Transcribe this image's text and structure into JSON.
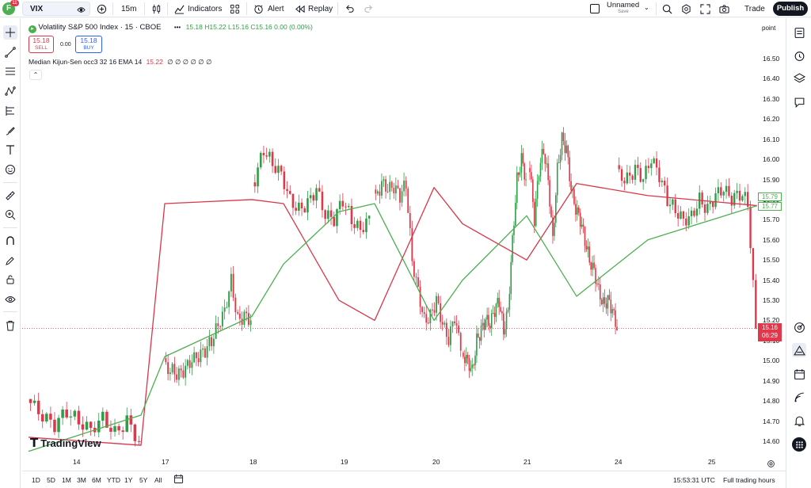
{
  "topbar": {
    "avatar_letter": "F",
    "avatar_badge": "11",
    "symbol": "VIX",
    "interval": "15m",
    "indicators_label": "Indicators",
    "alert_label": "Alert",
    "replay_label": "Replay",
    "layout_name": "Unnamed",
    "layout_sub": "Save",
    "trade_label": "Trade",
    "publish_label": "Publish"
  },
  "legend": {
    "title": "Volatility S&P 500 Index · 15 · CBOE",
    "ohlc": "15.18 H15.22 L15.16 C15.16 0.00 (0.00%)",
    "sell_price": "15.18",
    "sell_label": "SELL",
    "spread": "0.00",
    "buy_price": "15.18",
    "buy_label": "BUY",
    "indicator_name": "Median Kijun-Sen",
    "indicator_params": "occ3 32 16 EMA 14",
    "indicator_value": "15.22",
    "indicator_extra": "∅ ∅ ∅ ∅ ∅ ∅",
    "more_dots": "•••"
  },
  "price_axis": {
    "unit_label": "point",
    "ticks": [
      "16.50",
      "16.40",
      "16.30",
      "16.20",
      "16.10",
      "16.00",
      "15.90",
      "15.80",
      "15.70",
      "15.60",
      "15.50",
      "15.40",
      "15.30",
      "15.20",
      "15.10",
      "15.00",
      "14.90",
      "14.80",
      "14.70",
      "14.60"
    ],
    "label_green_1": "15.79",
    "label_green_2": "15.77",
    "label_last_price": "15.16",
    "label_countdown": "06:29"
  },
  "time_axis": {
    "ticks": [
      "14",
      "17",
      "18",
      "19",
      "20",
      "21",
      "24",
      "25"
    ]
  },
  "bottom": {
    "ranges": [
      "1D",
      "5D",
      "1M",
      "3M",
      "6M",
      "YTD",
      "1Y",
      "5Y",
      "All"
    ],
    "clock": "15:53:31 UTC",
    "session": "Full trading hours"
  },
  "watermark": "TradingView",
  "colors": {
    "up": "#26a69a",
    "up_green": "#2e9e48",
    "down": "#e0374a",
    "median_line": "#d9364a",
    "kijun_line": "#4caf50",
    "accent": "#2962ff"
  },
  "chart_data": {
    "type": "candlestick",
    "timeframe": "15m",
    "x_ticks": [
      "14",
      "17",
      "18",
      "19",
      "20",
      "21",
      "24",
      "25"
    ],
    "ylim": [
      14.56,
      16.58
    ],
    "last_price": 15.16,
    "close_path": [
      {
        "day": "14",
        "points": [
          14.79,
          14.72,
          14.68,
          14.75,
          14.7,
          14.66,
          14.72,
          14.64,
          14.7,
          14.6
        ]
      },
      {
        "day": "17",
        "points": [
          14.97,
          14.95,
          14.93,
          14.96,
          15.0,
          15.02,
          15.05,
          15.1,
          15.18,
          15.25,
          15.4,
          15.2,
          15.22,
          15.2
        ]
      },
      {
        "day": "18",
        "points": [
          15.9,
          16.05,
          15.98,
          15.93,
          15.8,
          15.75,
          15.78,
          15.85,
          15.72,
          15.7,
          15.8,
          15.7,
          15.65,
          15.72
        ]
      },
      {
        "day": "19",
        "points": [
          15.8,
          15.88,
          15.85,
          15.86,
          15.82,
          15.88,
          15.5,
          15.35,
          15.2,
          15.22,
          15.3,
          15.18,
          15.1,
          15.22,
          15.05
        ]
      },
      {
        "day": "20",
        "points": [
          15.03,
          15.0,
          14.95,
          15.1,
          15.15,
          15.2,
          15.18,
          15.25,
          15.3,
          15.15,
          15.25,
          15.6,
          15.9,
          16.0,
          15.9
        ]
      },
      {
        "day": "21",
        "points": [
          15.95,
          15.7,
          15.95,
          16.05,
          15.9,
          15.6,
          15.95,
          16.1,
          16.05,
          15.85,
          15.75,
          15.7,
          15.6,
          15.5,
          15.45,
          15.35,
          15.28,
          15.3,
          15.25,
          15.15
        ]
      },
      {
        "day": "24",
        "points": [
          15.92,
          15.9,
          15.95,
          15.9,
          16.0,
          15.92,
          15.8,
          15.75,
          15.7,
          15.72,
          15.8,
          15.75,
          15.82,
          15.85,
          15.8,
          15.83,
          15.79,
          15.16
        ]
      }
    ],
    "series": [
      {
        "name": "Median Kijun-Sen (median)",
        "color": "#d9364a",
        "values": [
          14.62,
          14.58,
          15.78,
          15.8,
          15.78,
          15.3,
          15.2,
          15.86,
          15.68,
          15.5,
          15.88,
          15.82,
          15.77
        ]
      },
      {
        "name": "Median Kijun-Sen (kijun)",
        "color": "#4caf50",
        "values": [
          14.55,
          14.73,
          15.02,
          15.22,
          15.48,
          15.74,
          15.78,
          15.2,
          15.4,
          15.72,
          15.32,
          15.6,
          15.77
        ]
      }
    ]
  }
}
